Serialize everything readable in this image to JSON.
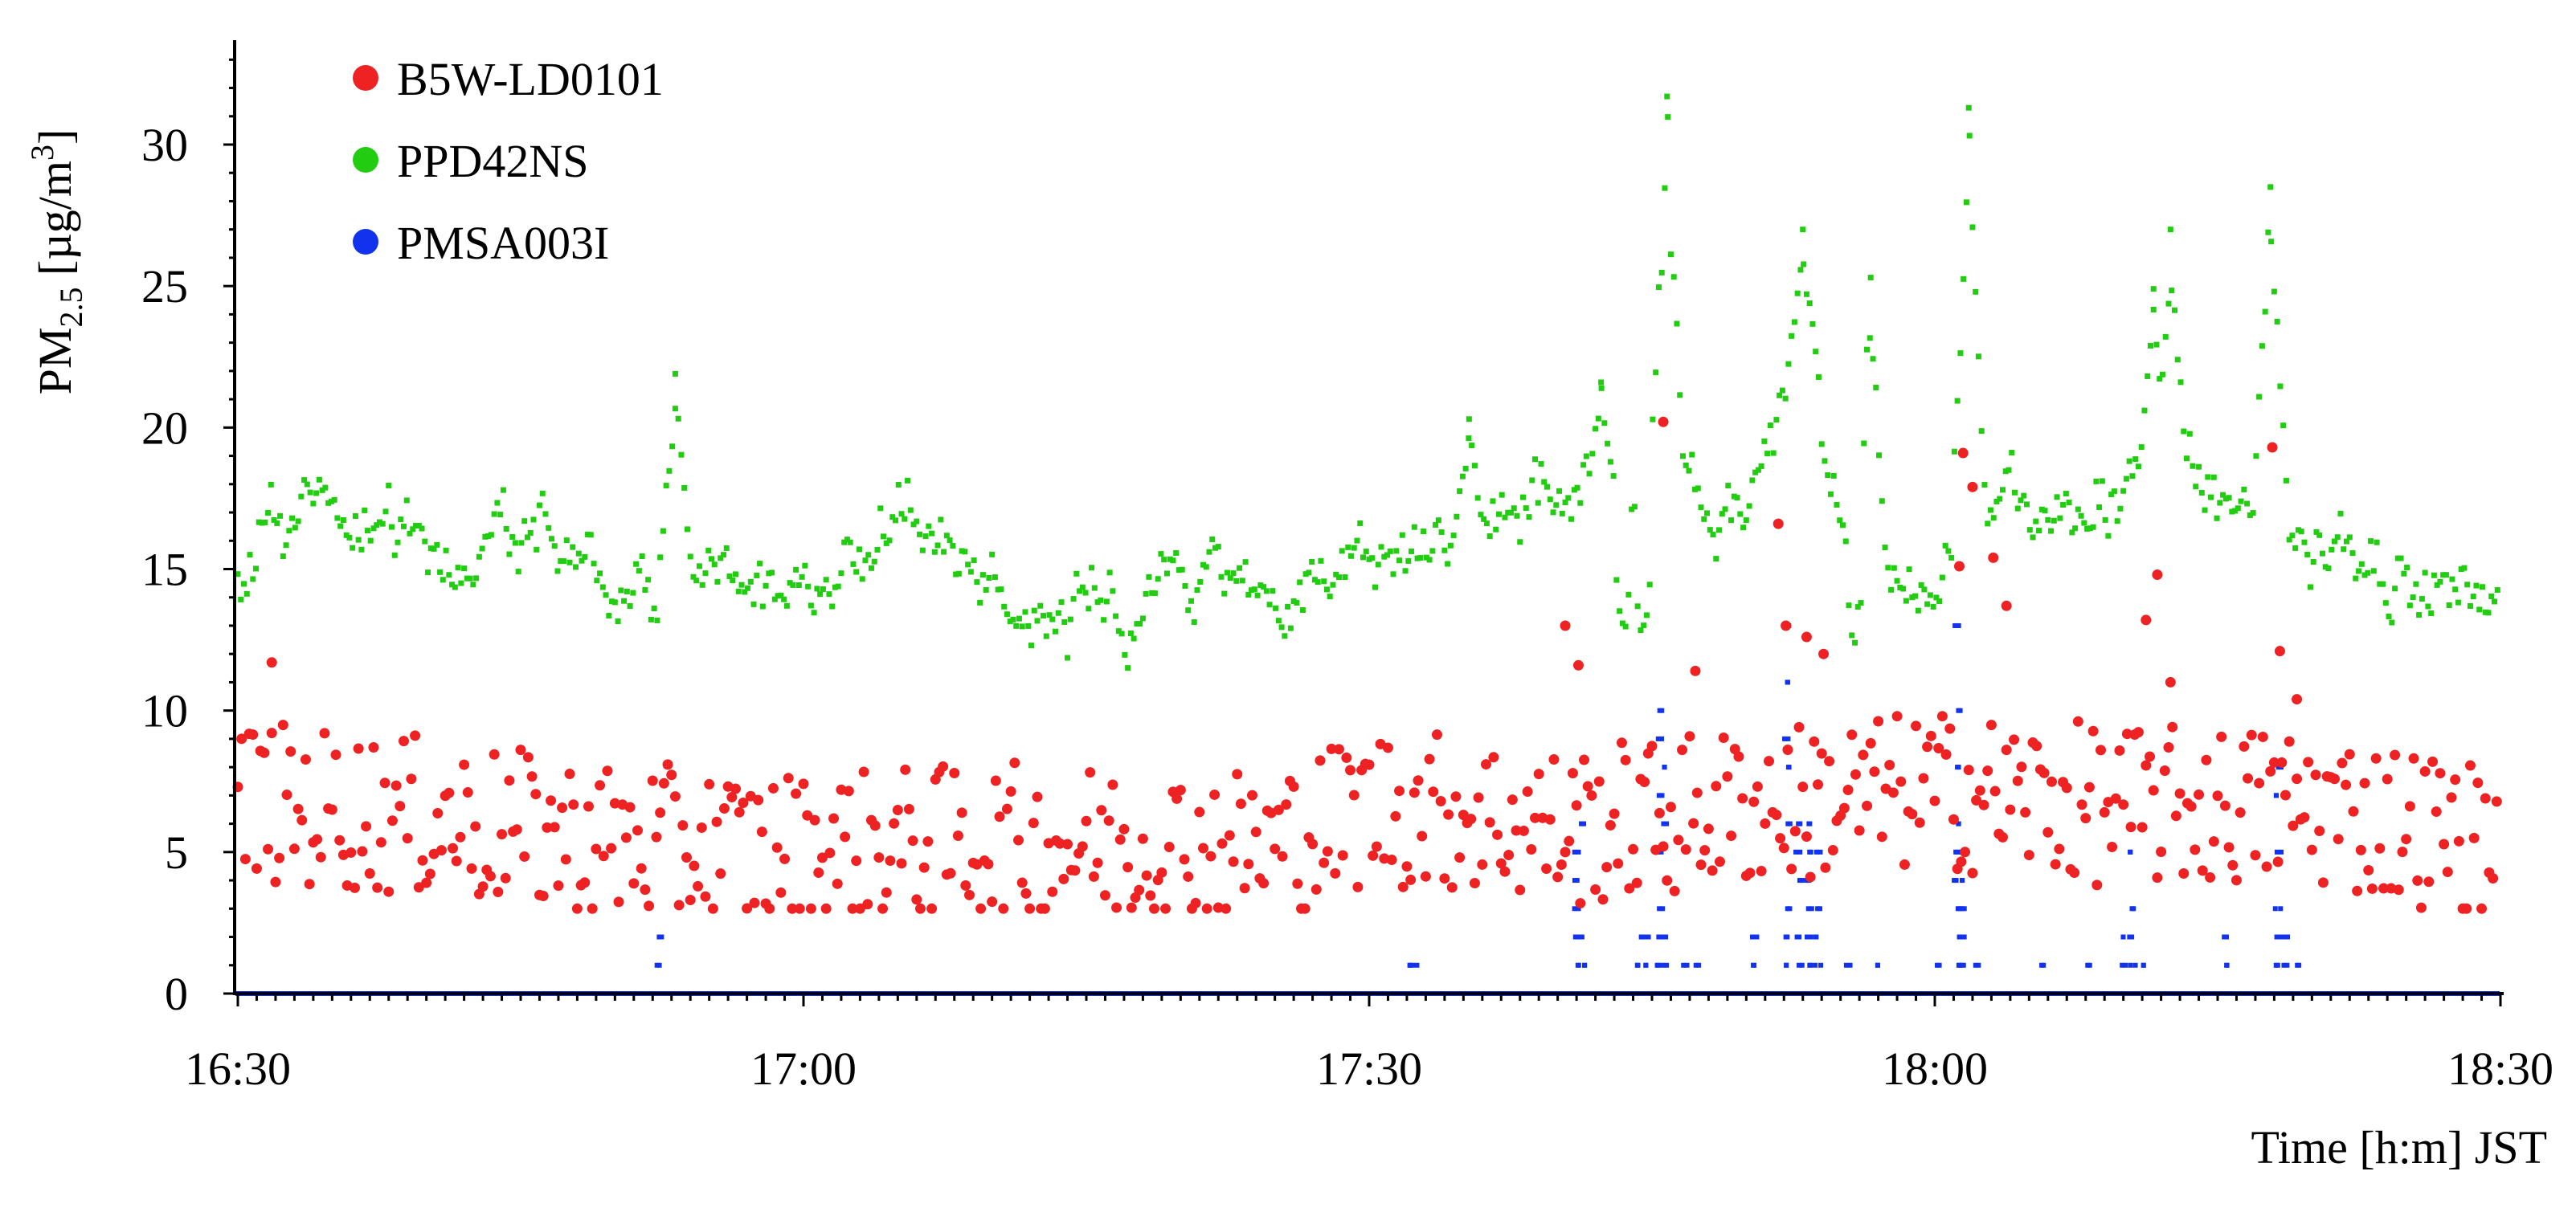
{
  "chart_data": {
    "type": "scatter",
    "title": "",
    "xlabel": "Time [h:m] JST",
    "ylabel": "PM2.5 [µg/m³]",
    "ylabel_parts": {
      "main": "PM",
      "sub": "2.5",
      "unit_open": " [µg/m",
      "unit_sup": "3",
      "unit_close": "]"
    },
    "xlim": [
      990,
      1110
    ],
    "ylim": [
      0,
      33
    ],
    "x_ticks": [
      {
        "value": 990,
        "label": "16:30"
      },
      {
        "value": 1020,
        "label": "17:00"
      },
      {
        "value": 1050,
        "label": "17:30"
      },
      {
        "value": 1080,
        "label": "18:00"
      },
      {
        "value": 1110,
        "label": "18:30"
      }
    ],
    "y_ticks": [
      0,
      5,
      10,
      15,
      20,
      25,
      30
    ],
    "grid": false,
    "legend_position": "top-left",
    "series": [
      {
        "name": "B5W-LD0101",
        "color": "#ee2222",
        "sampling": "every 12 s",
        "baseline": [
          [
            990,
            6.8
          ],
          [
            1000,
            6.2
          ],
          [
            1010,
            5.3
          ],
          [
            1020,
            5.0
          ],
          [
            1030,
            5.3
          ],
          [
            1040,
            5.2
          ],
          [
            1045,
            5.2
          ],
          [
            1050,
            6.6
          ],
          [
            1055,
            6.4
          ],
          [
            1060,
            5.8
          ],
          [
            1070,
            6.6
          ],
          [
            1080,
            7.2
          ],
          [
            1090,
            6.6
          ],
          [
            1100,
            6.6
          ],
          [
            1105,
            6.0
          ],
          [
            1110,
            5.2
          ]
        ],
        "spread": 3.2,
        "highlights": [
          [
            991.8,
            11.7
          ],
          [
            1065.6,
            20.2
          ],
          [
            1071.7,
            16.6
          ],
          [
            1072.1,
            13.0
          ],
          [
            1073.2,
            12.6
          ],
          [
            1074.1,
            12.0
          ],
          [
            1081.5,
            19.1
          ],
          [
            1081.3,
            15.1
          ],
          [
            1082.0,
            17.9
          ],
          [
            1083.1,
            15.4
          ],
          [
            1083.8,
            13.7
          ],
          [
            1091.2,
            13.2
          ],
          [
            1092.5,
            11.0
          ],
          [
            1091.8,
            14.8
          ],
          [
            1098.3,
            12.1
          ],
          [
            1099.2,
            10.4
          ],
          [
            1097.9,
            19.3
          ],
          [
            1060.4,
            13.0
          ],
          [
            1061.1,
            11.6
          ],
          [
            1067.3,
            11.4
          ]
        ]
      },
      {
        "name": "PPD42NS",
        "color": "#22cc11",
        "sampling": "dense, about 4 per min",
        "baseline": [
          [
            990,
            14.4
          ],
          [
            993,
            16.2
          ],
          [
            995,
            17.7
          ],
          [
            998,
            16.3
          ],
          [
            1000,
            15.9
          ],
          [
            1003,
            15.0
          ],
          [
            1006,
            16.2
          ],
          [
            1010,
            14.5
          ],
          [
            1013,
            14.6
          ],
          [
            1015,
            15.0
          ],
          [
            1020,
            14.0
          ],
          [
            1023,
            14.6
          ],
          [
            1025,
            15.8
          ],
          [
            1030,
            13.7
          ],
          [
            1035,
            13.6
          ],
          [
            1040,
            14.6
          ],
          [
            1045,
            14.3
          ],
          [
            1048,
            15.5
          ],
          [
            1050,
            15.1
          ],
          [
            1055,
            15.7
          ],
          [
            1060,
            17.8
          ],
          [
            1063,
            16.9
          ],
          [
            1066,
            18.3
          ],
          [
            1070,
            16.3
          ],
          [
            1072,
            21.0
          ],
          [
            1073,
            21.5
          ],
          [
            1076,
            14.2
          ],
          [
            1080,
            15.4
          ],
          [
            1083,
            18.3
          ],
          [
            1086,
            17.0
          ],
          [
            1090,
            16.7
          ],
          [
            1093,
            18.4
          ],
          [
            1096,
            16.7
          ],
          [
            1098,
            17.5
          ],
          [
            1100,
            16.5
          ],
          [
            1103,
            15.8
          ],
          [
            1106,
            14.5
          ],
          [
            1110,
            13.5
          ]
        ],
        "spread": 2.4,
        "peaks": [
          [
            1013.2,
            21.9
          ],
          [
            1055.3,
            20.3
          ],
          [
            1065.8,
            31.7
          ],
          [
            1073.0,
            27.0
          ],
          [
            1076.6,
            25.3
          ],
          [
            1081.8,
            31.3
          ],
          [
            1091.6,
            24.9
          ],
          [
            1092.5,
            27.0
          ],
          [
            1097.8,
            28.5
          ],
          [
            1062.3,
            21.6
          ]
        ],
        "dips": [
          [
            1064.5,
            12.0
          ],
          [
            1075.7,
            12.1
          ],
          [
            1063.5,
            12.2
          ]
        ]
      },
      {
        "name": "PMSA003I",
        "color": "#1133ee",
        "sampling": "every 10 s, integer values",
        "baseline_value": 0,
        "bursts": [
          {
            "x": 1012.3,
            "values": [
              1,
              2
            ]
          },
          {
            "x": 1052.1,
            "values": [
              1
            ]
          },
          {
            "x": 1052.4,
            "values": [
              1
            ]
          },
          {
            "x": 1061.0,
            "values": [
              1,
              2,
              3,
              4,
              5
            ]
          },
          {
            "x": 1061.3,
            "values": [
              1,
              2,
              6
            ]
          },
          {
            "x": 1064.3,
            "values": [
              1,
              2
            ]
          },
          {
            "x": 1064.7,
            "values": [
              1,
              2
            ]
          },
          {
            "x": 1065.4,
            "values": [
              1,
              2,
              3,
              5,
              7,
              9,
              10
            ]
          },
          {
            "x": 1065.7,
            "values": [
              1,
              2,
              4,
              6,
              8
            ]
          },
          {
            "x": 1066.7,
            "values": [
              1
            ]
          },
          {
            "x": 1067.5,
            "values": [
              1
            ]
          },
          {
            "x": 1070.5,
            "values": [
              1,
              2
            ]
          },
          {
            "x": 1072.2,
            "values": [
              1,
              2,
              3,
              6,
              8,
              9,
              11,
              13
            ]
          },
          {
            "x": 1072.8,
            "values": [
              1,
              2,
              4,
              5,
              6
            ]
          },
          {
            "x": 1073.3,
            "values": [
              1,
              2,
              3,
              4,
              5,
              6
            ]
          },
          {
            "x": 1073.8,
            "values": [
              1,
              2,
              3,
              5
            ]
          },
          {
            "x": 1075.4,
            "values": [
              1
            ]
          },
          {
            "x": 1077.0,
            "values": [
              1
            ]
          },
          {
            "x": 1080.3,
            "values": [
              1
            ]
          },
          {
            "x": 1081.2,
            "values": [
              1,
              2,
              3,
              4,
              5,
              6,
              8,
              10,
              13
            ]
          },
          {
            "x": 1081.5,
            "values": [
              1,
              2,
              3,
              4,
              5
            ]
          },
          {
            "x": 1082.3,
            "values": [
              1
            ]
          },
          {
            "x": 1085.6,
            "values": [
              1
            ]
          },
          {
            "x": 1088.1,
            "values": [
              1
            ]
          },
          {
            "x": 1090.0,
            "values": [
              1,
              2
            ]
          },
          {
            "x": 1090.5,
            "values": [
              1,
              2,
              3,
              5
            ]
          },
          {
            "x": 1091.2,
            "values": [
              1
            ]
          },
          {
            "x": 1095.4,
            "values": [
              1,
              2
            ]
          },
          {
            "x": 1098.2,
            "values": [
              1,
              2,
              3,
              5,
              7,
              8
            ]
          },
          {
            "x": 1098.6,
            "values": [
              1,
              2
            ]
          },
          {
            "x": 1099.3,
            "values": [
              1
            ]
          }
        ]
      }
    ]
  }
}
